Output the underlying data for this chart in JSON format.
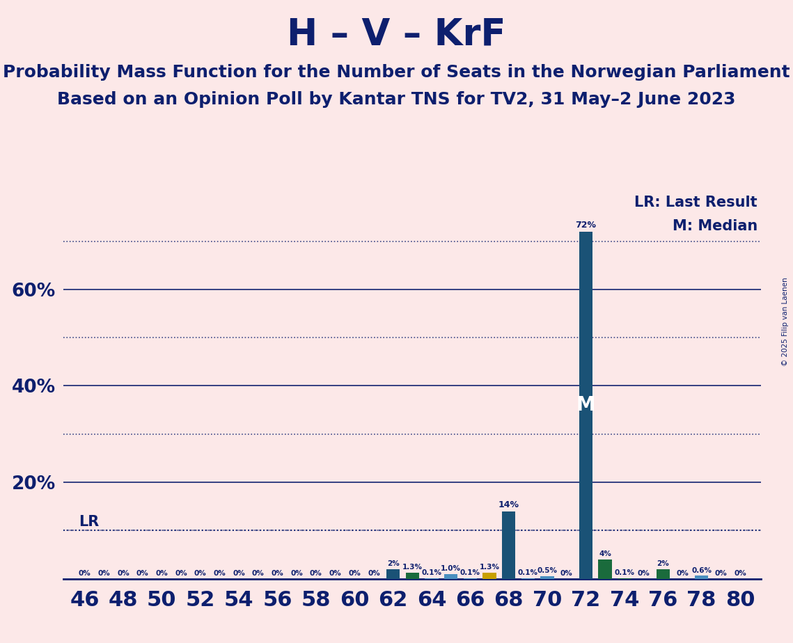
{
  "title": "H – V – KrF",
  "subtitle1": "Probability Mass Function for the Number of Seats in the Norwegian Parliament",
  "subtitle2": "Based on an Opinion Poll by Kantar TNS for TV2, 31 May–2 June 2023",
  "copyright": "© 2025 Filip van Laenen",
  "background_color": "#fce8e8",
  "title_color": "#0d1f6e",
  "bar_color_main": "#1a5276",
  "bar_color_green": "#1a6b3c",
  "bar_color_lightblue": "#4a8fbf",
  "bar_color_yellow": "#c8a000",
  "lr_color": "#0d1f6e",
  "lr_level": 10.0,
  "median_seat": 72,
  "seats": [
    46,
    47,
    48,
    49,
    50,
    51,
    52,
    53,
    54,
    55,
    56,
    57,
    58,
    59,
    60,
    61,
    62,
    63,
    64,
    65,
    66,
    67,
    68,
    69,
    70,
    71,
    72,
    73,
    74,
    75,
    76,
    77,
    78,
    79,
    80
  ],
  "probabilities": [
    0.0,
    0.0,
    0.0,
    0.0,
    0.0,
    0.0,
    0.0,
    0.0,
    0.0,
    0.0,
    0.0,
    0.0,
    0.0,
    0.0,
    0.0,
    0.0,
    2.0,
    1.3,
    0.1,
    1.0,
    0.1,
    1.3,
    14.0,
    0.1,
    0.5,
    0.0,
    72.0,
    4.0,
    0.1,
    0.0,
    2.0,
    0.0,
    0.6,
    0.0,
    0.0
  ],
  "bar_colors": [
    "#1a5276",
    "#1a5276",
    "#1a5276",
    "#1a5276",
    "#1a5276",
    "#1a5276",
    "#1a5276",
    "#1a5276",
    "#1a5276",
    "#1a5276",
    "#1a5276",
    "#1a5276",
    "#1a5276",
    "#1a5276",
    "#1a5276",
    "#1a5276",
    "#1a5276",
    "#1a6b3c",
    "#4a8fbf",
    "#4a8fbf",
    "#4a8fbf",
    "#c8a000",
    "#1a5276",
    "#4a8fbf",
    "#4a8fbf",
    "#1a5276",
    "#1a5276",
    "#1a6b3c",
    "#1a6b3c",
    "#1a6b3c",
    "#1a6b3c",
    "#1a6b3c",
    "#4a8fbf",
    "#4a8fbf",
    "#4a8fbf"
  ],
  "prob_labels": [
    "0%",
    "0%",
    "0%",
    "0%",
    "0%",
    "0%",
    "0%",
    "0%",
    "0%",
    "0%",
    "0%",
    "0%",
    "0%",
    "0%",
    "0%",
    "0%",
    "2%",
    "1.3%",
    "0.1%",
    "1.0%",
    "0.1%",
    "1.3%",
    "14%",
    "0.1%",
    "0.5%",
    "0%",
    "72%",
    "4%",
    "0.1%",
    "0%",
    "2%",
    "0%",
    "0.6%",
    "0%",
    "0%"
  ],
  "ylim": [
    0,
    80
  ],
  "solid_grid_levels": [
    20,
    40,
    60
  ],
  "dotted_grid_levels": [
    10,
    30,
    50,
    70
  ],
  "xlabel_fontsize": 22,
  "title_fontsize": 38,
  "subtitle_fontsize": 18,
  "lr_label": "LR",
  "median_label": "M",
  "legend_lr": "LR: Last Result",
  "legend_m": "M: Median"
}
